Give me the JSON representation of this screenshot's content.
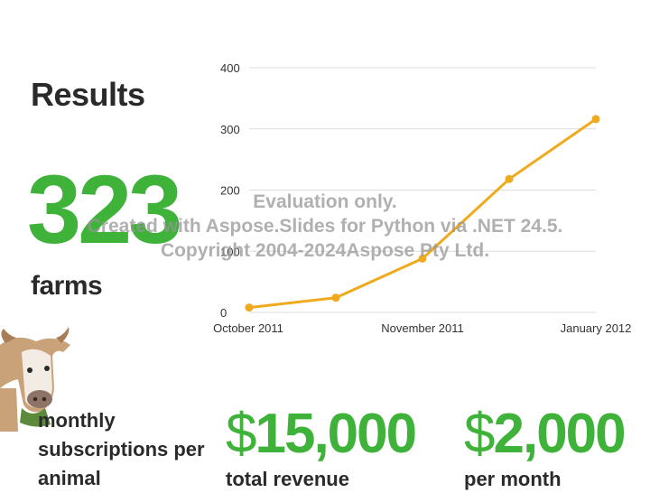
{
  "slide": {
    "title": "Results",
    "farm_count": "323",
    "farm_label": "farms",
    "subscriptions_label": "monthly subscriptions per animal",
    "revenue": {
      "symbol": "$",
      "amount": "15,000",
      "label": "total revenue"
    },
    "per_month": {
      "symbol": "$",
      "amount": "2,000",
      "label": "per month"
    }
  },
  "watermark": {
    "line1": "Evaluation only.",
    "line2": "Created with Aspose.Slides for Python via .NET 24.5.",
    "line3": "Copyright 2004-2024Aspose Pty Ltd."
  },
  "colors": {
    "accent_green": "#3fb23a",
    "line_orange": "#f0aa1e",
    "text_dark": "#2a2a2a",
    "grid": "#dcdcdc"
  },
  "chart_data": {
    "type": "line",
    "x": [
      "October 2011",
      "",
      "November 2011",
      "",
      "January 2012"
    ],
    "x_tick_labels": [
      "October 2011",
      "November 2011",
      "January 2012"
    ],
    "series": [
      {
        "values": [
          8,
          24,
          88,
          218,
          316
        ]
      }
    ],
    "yticks": [
      0,
      100,
      200,
      300,
      400
    ],
    "ylim": [
      0,
      400
    ],
    "grid": true,
    "title": "",
    "xlabel": "",
    "ylabel": ""
  }
}
